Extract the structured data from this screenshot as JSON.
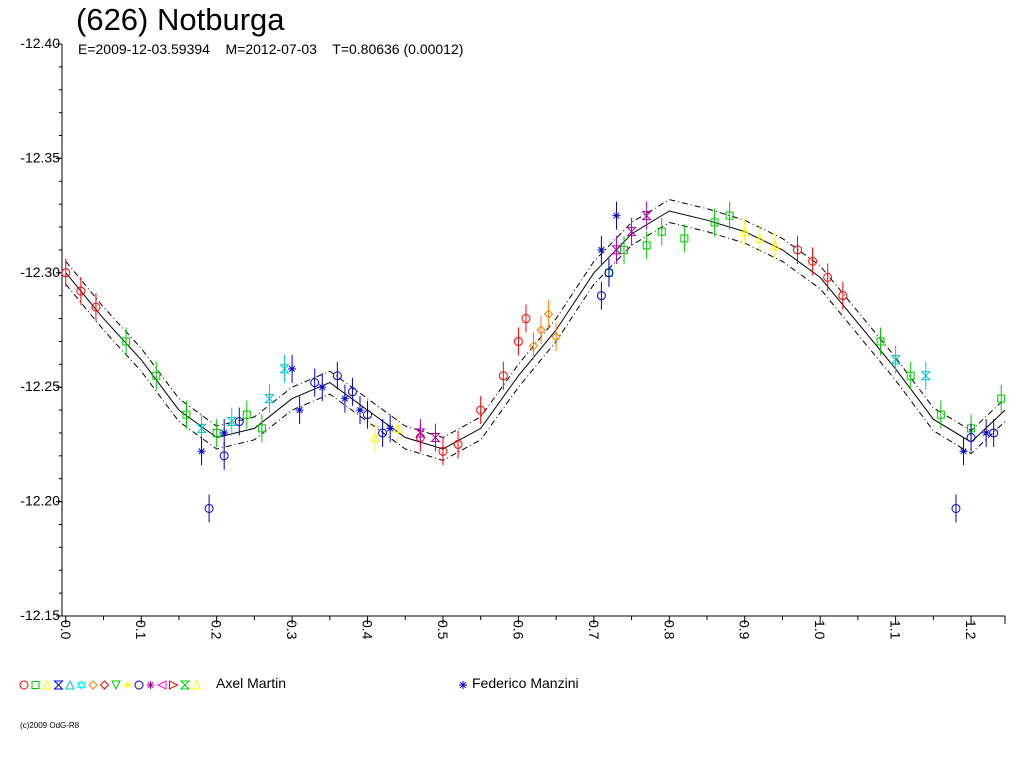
{
  "chart_data": {
    "type": "scatter",
    "title": "(626) Notburga",
    "subtitle": "E=2009-12-03.59394    M=2012-07-03    T=0.80636 (0.00012)",
    "xlabel": "",
    "ylabel": "",
    "xlim": [
      -0.005,
      1.245
    ],
    "ylim": [
      -12.15,
      -12.4
    ],
    "y_inverted": true,
    "x_ticks": [
      "0.0",
      "0.1",
      "0.2",
      "0.3",
      "0.4",
      "0.5",
      "0.6",
      "0.7",
      "0.8",
      "0.9",
      "1.0",
      "1.1",
      "1.2"
    ],
    "y_ticks": [
      "-12.40",
      "-12.35",
      "-12.30",
      "-12.25",
      "-12.20",
      "-12.15"
    ],
    "grid": false,
    "fit_curve": {
      "x": [
        0.0,
        0.05,
        0.1,
        0.15,
        0.2,
        0.25,
        0.3,
        0.35,
        0.4,
        0.45,
        0.5,
        0.55,
        0.6,
        0.65,
        0.7,
        0.75,
        0.8,
        0.85,
        0.9,
        0.95,
        1.0,
        1.05,
        1.1,
        1.15,
        1.2,
        1.245
      ],
      "y": [
        -12.3,
        -12.28,
        -12.262,
        -12.24,
        -12.228,
        -12.232,
        -12.245,
        -12.252,
        -12.24,
        -12.228,
        -12.223,
        -12.232,
        -12.255,
        -12.275,
        -12.3,
        -12.317,
        -12.327,
        -12.323,
        -12.318,
        -12.31,
        -12.298,
        -12.278,
        -12.258,
        -12.236,
        -12.226,
        -12.24
      ],
      "band": 0.005
    },
    "series": [
      {
        "marker": "circle",
        "color": "#ff0000",
        "x": [
          0.0,
          0.02,
          0.04,
          0.47,
          0.5,
          0.52,
          0.55,
          0.58,
          0.6,
          0.61,
          0.97,
          0.99,
          1.01,
          1.03
        ],
        "y": [
          -12.3,
          -12.292,
          -12.285,
          -12.228,
          -12.222,
          -12.225,
          -12.24,
          -12.255,
          -12.27,
          -12.28,
          -12.31,
          -12.305,
          -12.298,
          -12.29
        ]
      },
      {
        "marker": "square",
        "color": "#00c800",
        "x": [
          0.08,
          0.12,
          0.16,
          0.2,
          0.24,
          0.26,
          0.72,
          0.74,
          0.77,
          0.79,
          0.82,
          0.86,
          0.88,
          1.08,
          1.12,
          1.16,
          1.2,
          1.24
        ],
        "y": [
          -12.27,
          -12.255,
          -12.238,
          -12.23,
          -12.238,
          -12.232,
          -12.3,
          -12.31,
          -12.312,
          -12.318,
          -12.315,
          -12.322,
          -12.325,
          -12.27,
          -12.255,
          -12.238,
          -12.232,
          -12.245
        ]
      },
      {
        "marker": "triangle",
        "color": "#ffff00",
        "x": [
          0.41,
          0.44,
          0.9,
          0.92,
          0.94
        ],
        "y": [
          -12.228,
          -12.232,
          -12.318,
          -12.315,
          -12.312
        ]
      },
      {
        "marker": "hourglass",
        "color": "#00c8c8",
        "x": [
          0.18,
          0.22,
          0.27,
          0.29,
          1.1,
          1.14
        ],
        "y": [
          -12.232,
          -12.235,
          -12.245,
          -12.258,
          -12.262,
          -12.255
        ]
      },
      {
        "marker": "diamond",
        "color": "#ff8000",
        "x": [
          0.62,
          0.63,
          0.64,
          0.65
        ],
        "y": [
          -12.268,
          -12.275,
          -12.282,
          -12.272
        ]
      },
      {
        "marker": "circle",
        "color": "#0000c8",
        "x": [
          0.19,
          0.21,
          0.23,
          0.33,
          0.36,
          0.38,
          0.4,
          0.42,
          0.71,
          0.72,
          1.18,
          1.2,
          1.23
        ],
        "y": [
          -12.197,
          -12.22,
          -12.235,
          -12.252,
          -12.255,
          -12.248,
          -12.238,
          -12.23,
          -12.29,
          -12.3,
          -12.197,
          -12.228,
          -12.23
        ]
      },
      {
        "marker": "hourglass",
        "color": "#aa00aa",
        "x": [
          0.47,
          0.49,
          0.73,
          0.75,
          0.77
        ],
        "y": [
          -12.23,
          -12.228,
          -12.31,
          -12.318,
          -12.325
        ]
      },
      {
        "marker": "asterisk",
        "color": "#0000c8",
        "x": [
          0.18,
          0.21,
          0.3,
          0.31,
          0.34,
          0.37,
          0.39,
          0.43,
          0.71,
          0.73,
          1.19,
          1.22
        ],
        "y": [
          -12.222,
          -12.23,
          -12.258,
          -12.24,
          -12.25,
          -12.245,
          -12.24,
          -12.232,
          -12.31,
          -12.325,
          -12.222,
          -12.23
        ]
      }
    ],
    "legend": [
      {
        "label": "Axel Martin",
        "markers": [
          "circle",
          "square",
          "triangle",
          "hourglass",
          "triangle",
          "star",
          "diamond",
          "pentagon",
          "triangle-down",
          "asterisk",
          "hexagon",
          "asterisk",
          "triangle-left",
          "triangle-right",
          "hourglass",
          "triangle"
        ],
        "colors": [
          "#ff0000",
          "#00c800",
          "#ffff00",
          "#0000ff",
          "#00c8c8",
          "#00ffff",
          "#ff8000",
          "#ff0000",
          "#00c800",
          "#ffff00",
          "#0000c8",
          "#aa00aa",
          "#ff00ff",
          "#ff0000",
          "#00c800",
          "#ffff00"
        ]
      },
      {
        "label": "Federico Manzini",
        "markers": [
          "asterisk"
        ],
        "colors": [
          "#0000c8"
        ]
      }
    ],
    "credit": "(c)2009 OdG-R8"
  }
}
